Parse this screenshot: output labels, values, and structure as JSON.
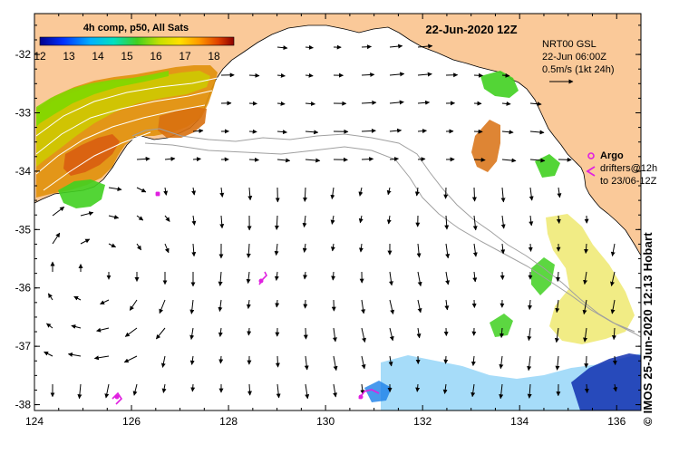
{
  "map": {
    "title": "22-Jun-2020 12Z",
    "colorbar": {
      "label": "4h comp, p50, All Sats",
      "ticks": [
        "12",
        "13",
        "14",
        "15",
        "16",
        "17",
        "18"
      ]
    },
    "current_info": {
      "line1": "NRT00 GSL",
      "line2": "22-Jun 06:00Z",
      "line3": "0.5m/s (1kt 24h)"
    },
    "argo": {
      "title": "Argo",
      "line1": "drifters@12h",
      "line2": "to 23/06-12Z"
    },
    "credit": "© IMOS 25-Jun-2020 12:13 Hobart",
    "lon_ticks": [
      "124",
      "126",
      "128",
      "130",
      "132",
      "134",
      "136"
    ],
    "lat_ticks": [
      "-32",
      "-33",
      "-34",
      "-35",
      "-36",
      "-37",
      "-38"
    ],
    "extent": {
      "lon_min": 124,
      "lon_max": 136.5,
      "lat_min": -38.1,
      "lat_max": -31.3
    },
    "colors": {
      "land": "#fac999",
      "ocean": "#ffffff",
      "argo": "#e020e0",
      "bathymetry": "#a0a0a0",
      "contour": "#ffffff"
    }
  }
}
